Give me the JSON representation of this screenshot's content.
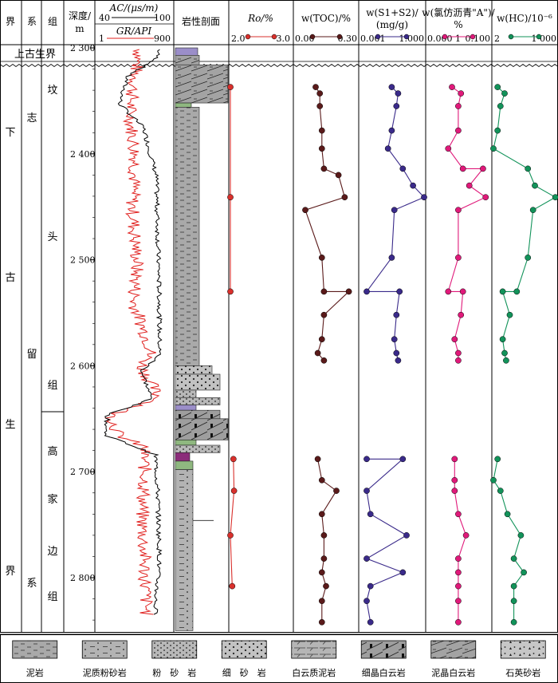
{
  "header": {
    "jie": "界",
    "xi": "系",
    "zu": "组",
    "depth_label": "深度/",
    "depth_unit": "m",
    "ac_label": "AC/(μs/m)",
    "ac_min": "40",
    "ac_max": "100",
    "gr_label": "GR/API",
    "gr_min": "1",
    "gr_max": "900",
    "litho": "岩性剖面",
    "ro_label": "Ro/%",
    "ro_min": "2.0",
    "ro_max": "3.0",
    "toc_label": "w(TOC)/%",
    "toc_min": "0.00",
    "toc_max": "0.30",
    "s12_label_a": "w(S1+S2)/",
    "s12_label_b": "(mg/g)",
    "s12_min": "0.001",
    "s12_max": "1.000",
    "bit_label_a": "w(氯仿沥青\"A\")/",
    "bit_label_b": "%",
    "bit_min": "0.000 1",
    "bit_max": "0.100",
    "hc_label": "w(HC)/10⁻⁶",
    "hc_min": "2",
    "hc_max": "1 000"
  },
  "strat": {
    "upper": "上古生界",
    "jie_chars": [
      "下",
      "古",
      "生",
      "界"
    ],
    "xi_chars": [
      "志",
      "留",
      "系"
    ],
    "zu1_chars": [
      "坟",
      "头",
      "组"
    ],
    "zu2_chars": [
      "高",
      "家",
      "边",
      "组"
    ]
  },
  "depth_ticks": [
    "2 300",
    "2 400",
    "2 500",
    "2 600",
    "2 700",
    "2 800"
  ],
  "legend": [
    {
      "label": "泥岩",
      "pattern": "mudstone"
    },
    {
      "label": "泥质粉砂岩",
      "pattern": "argsilt"
    },
    {
      "label": "粉　砂　岩",
      "pattern": "siltstone"
    },
    {
      "label": "细　砂　岩",
      "pattern": "finesand"
    },
    {
      "label": "白云质泥岩",
      "pattern": "dolomud"
    },
    {
      "label": "细晶白云岩",
      "pattern": "finedolo"
    },
    {
      "label": "泥晶白云岩",
      "pattern": "micdolo"
    },
    {
      "label": "石英砂岩",
      "pattern": "quartzsand"
    }
  ],
  "colors": {
    "ro": "#d9302c",
    "toc": "#5a1a1a",
    "s12": "#3a2a8a",
    "bit": "#e0197a",
    "hc": "#12935a",
    "ac_curve": "#000000",
    "gr_curve": "#e0201e"
  },
  "chart_data": {
    "type": "line",
    "depth_axis": {
      "label": "深度/m",
      "range": [
        2300,
        2860
      ],
      "ticks": [
        2300,
        2400,
        2500,
        2600,
        2700,
        2800
      ]
    },
    "series": [
      {
        "name": "Ro/%",
        "scale": "linear",
        "xlim": [
          2.0,
          3.0
        ],
        "points": [
          [
            2.0,
            2337
          ],
          [
            2.0,
            2441
          ],
          [
            2.0,
            2530
          ],
          [
            2.05,
            2688
          ],
          [
            2.06,
            2718
          ],
          [
            2.0,
            2760
          ],
          [
            2.03,
            2808
          ]
        ]
      },
      {
        "name": "w(TOC)/%",
        "scale": "linear",
        "xlim": [
          0.0,
          0.3
        ],
        "points": [
          [
            0.1,
            2337
          ],
          [
            0.12,
            2343
          ],
          [
            0.12,
            2355
          ],
          [
            0.13,
            2378
          ],
          [
            0.13,
            2395
          ],
          [
            0.14,
            2414
          ],
          [
            0.21,
            2420
          ],
          [
            0.24,
            2441
          ],
          [
            0.05,
            2453
          ],
          [
            0.13,
            2498
          ],
          [
            0.14,
            2530
          ],
          [
            0.26,
            2530
          ],
          [
            0.14,
            2552
          ],
          [
            0.13,
            2575
          ],
          [
            0.11,
            2588
          ],
          [
            0.14,
            2595
          ],
          [
            0.11,
            2688
          ],
          [
            0.13,
            2708
          ],
          [
            0.2,
            2718
          ],
          [
            0.13,
            2740
          ],
          [
            0.14,
            2760
          ],
          [
            0.14,
            2782
          ],
          [
            0.13,
            2795
          ],
          [
            0.15,
            2808
          ],
          [
            0.13,
            2822
          ],
          [
            0.13,
            2842
          ]
        ]
      },
      {
        "name": "w(S1+S2)/(mg/g)",
        "scale": "log",
        "xlim": [
          0.001,
          1.0
        ],
        "points": [
          [
            0.03,
            2337
          ],
          [
            0.06,
            2343
          ],
          [
            0.05,
            2355
          ],
          [
            0.03,
            2378
          ],
          [
            0.02,
            2395
          ],
          [
            0.1,
            2414
          ],
          [
            0.3,
            2430
          ],
          [
            1.0,
            2441
          ],
          [
            0.04,
            2453
          ],
          [
            0.03,
            2498
          ],
          [
            0.002,
            2530
          ],
          [
            0.07,
            2530
          ],
          [
            0.05,
            2552
          ],
          [
            0.04,
            2575
          ],
          [
            0.05,
            2588
          ],
          [
            0.06,
            2595
          ],
          [
            0.002,
            2688
          ],
          [
            0.1,
            2688
          ],
          [
            0.002,
            2718
          ],
          [
            0.003,
            2740
          ],
          [
            0.15,
            2760
          ],
          [
            0.002,
            2782
          ],
          [
            0.1,
            2795
          ],
          [
            0.003,
            2808
          ],
          [
            0.002,
            2822
          ],
          [
            0.003,
            2842
          ]
        ]
      },
      {
        "name": "w(氯仿沥青\"A\")/%",
        "scale": "log",
        "xlim": [
          0.0001,
          0.1
        ],
        "points": [
          [
            0.0015,
            2337
          ],
          [
            0.004,
            2343
          ],
          [
            0.003,
            2355
          ],
          [
            0.003,
            2378
          ],
          [
            0.001,
            2395
          ],
          [
            0.005,
            2414
          ],
          [
            0.045,
            2414
          ],
          [
            0.01,
            2430
          ],
          [
            0.06,
            2441
          ],
          [
            0.003,
            2453
          ],
          [
            0.003,
            2498
          ],
          [
            0.001,
            2530
          ],
          [
            0.005,
            2530
          ],
          [
            0.004,
            2552
          ],
          [
            0.002,
            2575
          ],
          [
            0.003,
            2588
          ],
          [
            0.003,
            2595
          ],
          [
            0.002,
            2688
          ],
          [
            0.002,
            2708
          ],
          [
            0.002,
            2718
          ],
          [
            0.003,
            2740
          ],
          [
            0.007,
            2760
          ],
          [
            0.003,
            2782
          ],
          [
            0.003,
            2795
          ],
          [
            0.003,
            2808
          ],
          [
            0.003,
            2822
          ],
          [
            0.003,
            2842
          ]
        ]
      },
      {
        "name": "w(HC)/10⁻⁶",
        "scale": "log",
        "xlim": [
          2,
          1000
        ],
        "points": [
          [
            3,
            2337
          ],
          [
            6,
            2343
          ],
          [
            4,
            2355
          ],
          [
            3,
            2378
          ],
          [
            2,
            2395
          ],
          [
            60,
            2414
          ],
          [
            120,
            2430
          ],
          [
            900,
            2441
          ],
          [
            100,
            2453
          ],
          [
            60,
            2498
          ],
          [
            20,
            2530
          ],
          [
            5,
            2530
          ],
          [
            10,
            2552
          ],
          [
            5,
            2575
          ],
          [
            6,
            2588
          ],
          [
            7,
            2595
          ],
          [
            3,
            2688
          ],
          [
            2,
            2708
          ],
          [
            4,
            2718
          ],
          [
            8,
            2740
          ],
          [
            30,
            2760
          ],
          [
            15,
            2782
          ],
          [
            40,
            2795
          ],
          [
            15,
            2808
          ],
          [
            15,
            2822
          ],
          [
            15,
            2842
          ]
        ]
      }
    ]
  }
}
